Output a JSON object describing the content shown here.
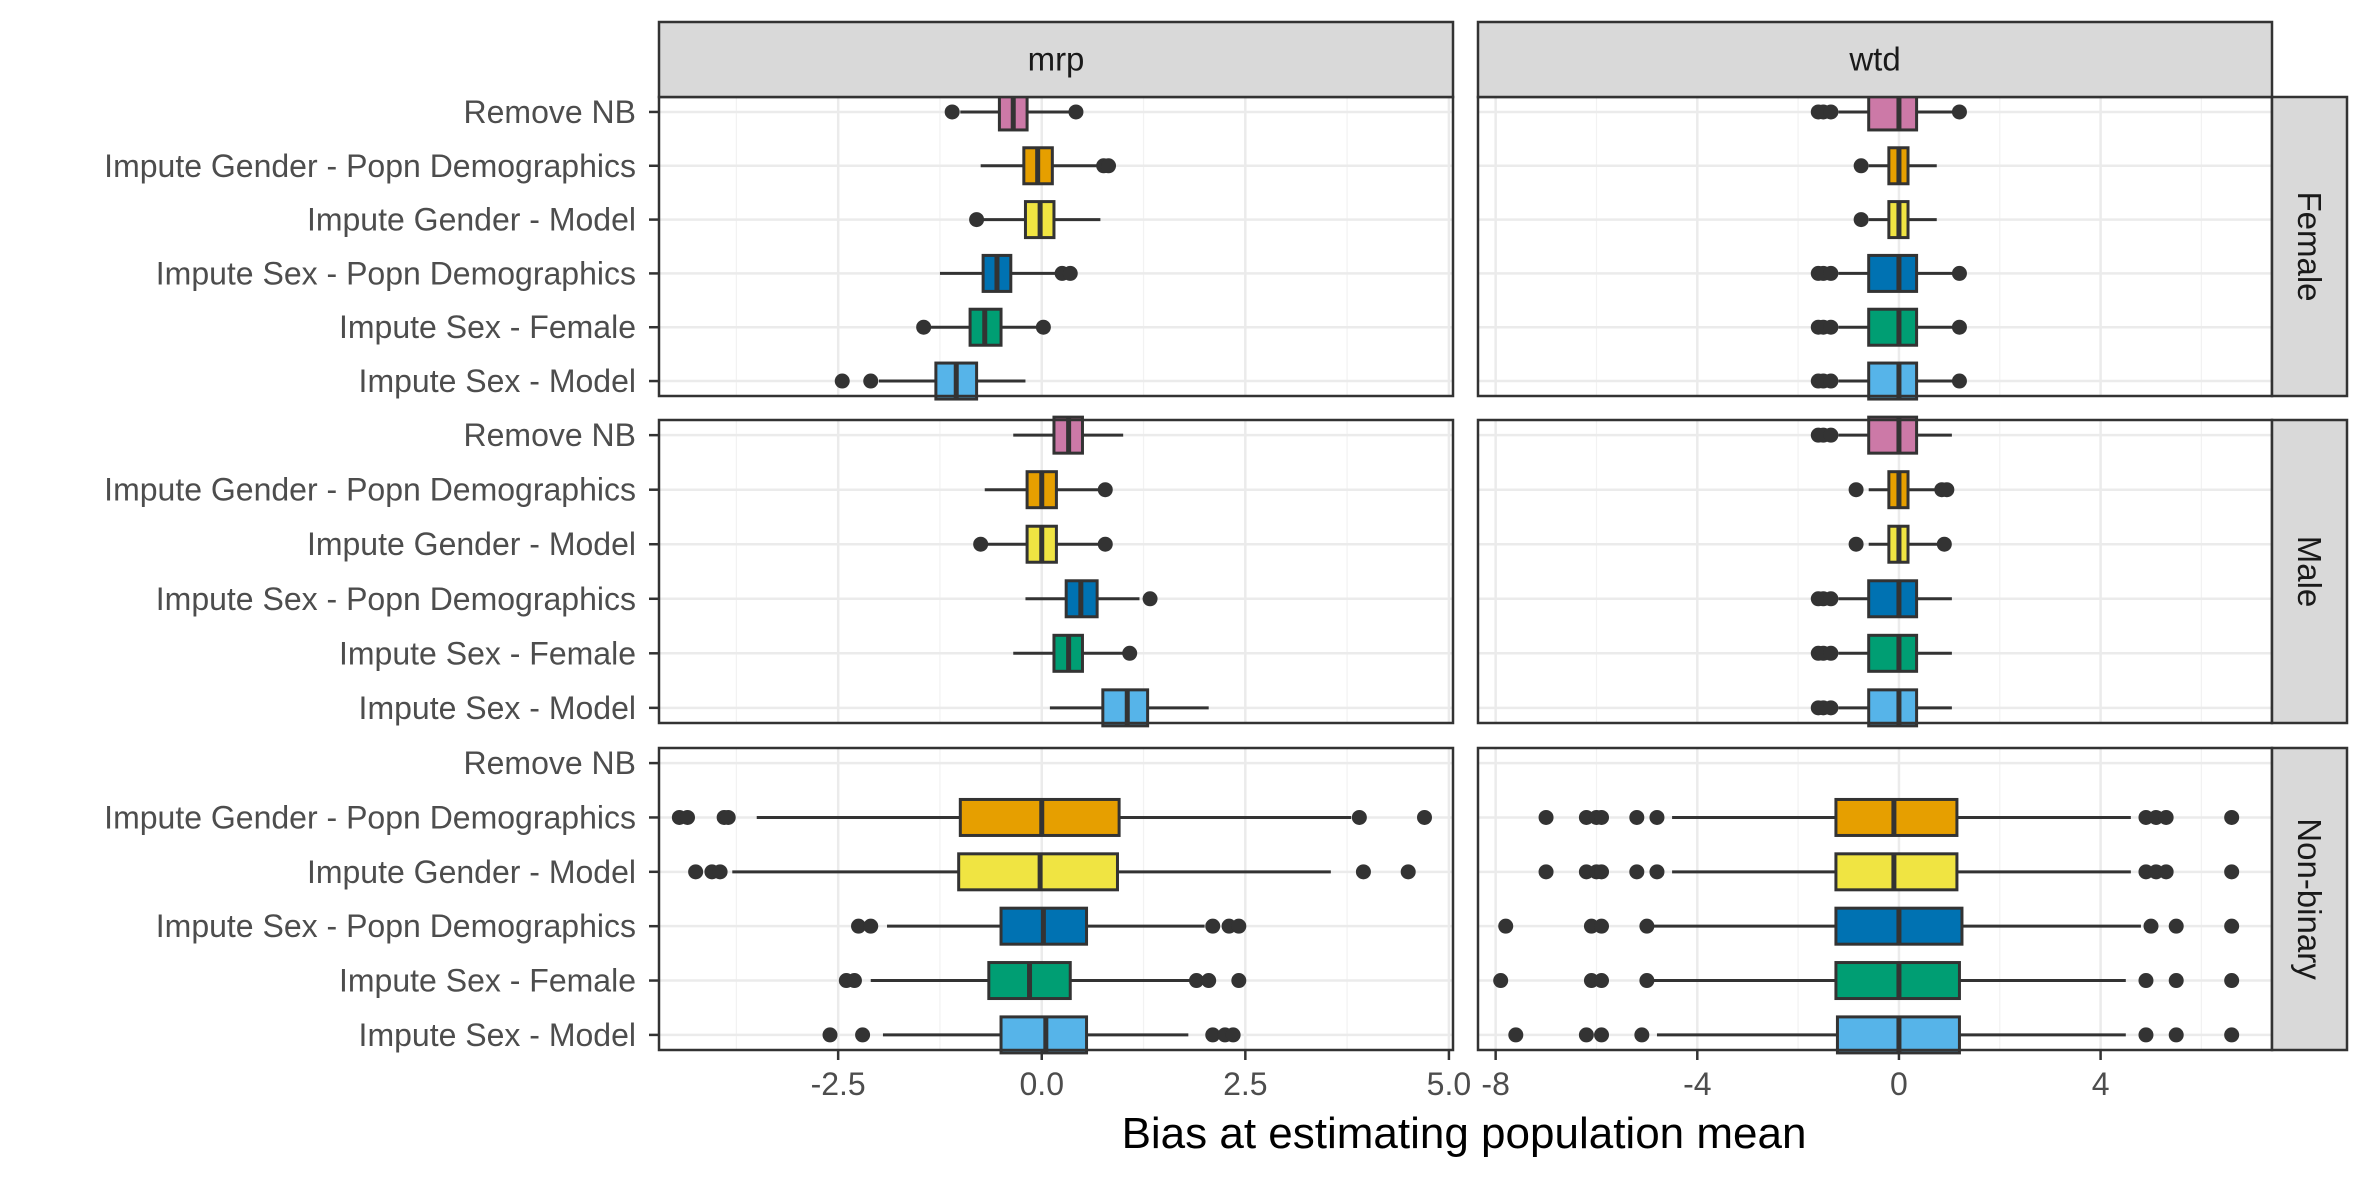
{
  "chart_data": {
    "type": "boxplot",
    "xlabel": "Bias at estimating population mean",
    "categories": [
      "Remove NB",
      "Impute Gender - Popn Demographics",
      "Impute Gender - Model",
      "Impute Sex - Popn Demographics",
      "Impute Sex - Female",
      "Impute Sex - Model"
    ],
    "colors": [
      "#CC79A7",
      "#E69F00",
      "#F0E442",
      "#0072B2",
      "#009E73",
      "#56B4E9"
    ],
    "columns": [
      {
        "name": "mrp",
        "xlim": [
          -4.7,
          5.05
        ],
        "ticks": [
          -2.5,
          0.0,
          2.5,
          5.0
        ],
        "tick_labels": [
          "-2.5",
          "0.0",
          "2.5",
          "5.0"
        ]
      },
      {
        "name": "wtd",
        "xlim": [
          -8.35,
          7.4
        ],
        "ticks": [
          -8,
          -4,
          0,
          4
        ],
        "tick_labels": [
          "-8",
          "-4",
          "0",
          "4"
        ]
      }
    ],
    "rows": [
      "Female",
      "Male",
      "Non-binary"
    ],
    "panels": {
      "mrp": {
        "Female": [
          {
            "q1": -0.52,
            "median": -0.35,
            "q3": -0.18,
            "whisker_low": -1.0,
            "whisker_high": 0.4,
            "outliers": [
              -1.1,
              0.42
            ]
          },
          {
            "q1": -0.22,
            "median": -0.05,
            "q3": 0.13,
            "whisker_low": -0.75,
            "whisker_high": 0.7,
            "outliers": [
              0.76,
              0.82
            ]
          },
          {
            "q1": -0.2,
            "median": -0.02,
            "q3": 0.15,
            "whisker_low": -0.75,
            "whisker_high": 0.72,
            "outliers": [
              -0.8
            ]
          },
          {
            "q1": -0.72,
            "median": -0.55,
            "q3": -0.38,
            "whisker_low": -1.25,
            "whisker_high": 0.2,
            "outliers": [
              0.25,
              0.35
            ]
          },
          {
            "q1": -0.88,
            "median": -0.7,
            "q3": -0.5,
            "whisker_low": -1.4,
            "whisker_high": 0.0,
            "outliers": [
              -1.45,
              0.02
            ]
          },
          {
            "q1": -1.3,
            "median": -1.05,
            "q3": -0.8,
            "whisker_low": -2.0,
            "whisker_high": -0.2,
            "outliers": [
              -2.45,
              -2.1
            ]
          }
        ],
        "Male": [
          {
            "q1": 0.15,
            "median": 0.33,
            "q3": 0.5,
            "whisker_low": -0.35,
            "whisker_high": 1.0,
            "outliers": []
          },
          {
            "q1": -0.18,
            "median": 0.0,
            "q3": 0.18,
            "whisker_low": -0.7,
            "whisker_high": 0.7,
            "outliers": [
              0.78
            ]
          },
          {
            "q1": -0.18,
            "median": 0.0,
            "q3": 0.18,
            "whisker_low": -0.7,
            "whisker_high": 0.7,
            "outliers": [
              -0.75,
              0.78
            ]
          },
          {
            "q1": 0.3,
            "median": 0.48,
            "q3": 0.68,
            "whisker_low": -0.2,
            "whisker_high": 1.2,
            "outliers": [
              1.33
            ]
          },
          {
            "q1": 0.15,
            "median": 0.33,
            "q3": 0.5,
            "whisker_low": -0.35,
            "whisker_high": 1.0,
            "outliers": [
              1.08
            ]
          },
          {
            "q1": 0.75,
            "median": 1.05,
            "q3": 1.3,
            "whisker_low": 0.1,
            "whisker_high": 2.05,
            "outliers": []
          }
        ],
        "Non-binary": [
          null,
          {
            "q1": -1.0,
            "median": 0.0,
            "q3": 0.95,
            "whisker_low": -3.5,
            "whisker_high": 3.8,
            "outliers": [
              -4.45,
              -4.35,
              -3.9,
              -3.85,
              3.9,
              4.7
            ]
          },
          {
            "q1": -1.02,
            "median": -0.02,
            "q3": 0.93,
            "whisker_low": -3.8,
            "whisker_high": 3.55,
            "outliers": [
              -4.25,
              -4.05,
              -3.95,
              3.95,
              4.5
            ]
          },
          {
            "q1": -0.5,
            "median": 0.02,
            "q3": 0.55,
            "whisker_low": -1.9,
            "whisker_high": 2.0,
            "outliers": [
              -2.25,
              -2.1,
              2.1,
              2.3,
              2.42
            ]
          },
          {
            "q1": -0.65,
            "median": -0.15,
            "q3": 0.35,
            "whisker_low": -2.1,
            "whisker_high": 1.85,
            "outliers": [
              -2.4,
              -2.3,
              1.9,
              2.05,
              2.42
            ]
          },
          {
            "q1": -0.5,
            "median": 0.05,
            "q3": 0.55,
            "whisker_low": -1.95,
            "whisker_high": 1.8,
            "outliers": [
              -2.6,
              -2.2,
              2.1,
              2.25,
              2.35
            ]
          }
        ]
      },
      "wtd": {
        "Female": [
          {
            "q1": -0.6,
            "median": 0.0,
            "q3": 0.35,
            "whisker_low": -1.2,
            "whisker_high": 1.2,
            "outliers": [
              -1.6,
              -1.5,
              -1.35,
              1.2
            ]
          },
          {
            "q1": -0.2,
            "median": 0.0,
            "q3": 0.18,
            "whisker_low": -0.6,
            "whisker_high": 0.75,
            "outliers": [
              -0.75
            ]
          },
          {
            "q1": -0.2,
            "median": 0.0,
            "q3": 0.18,
            "whisker_low": -0.6,
            "whisker_high": 0.75,
            "outliers": [
              -0.75
            ]
          },
          {
            "q1": -0.6,
            "median": 0.0,
            "q3": 0.35,
            "whisker_low": -1.2,
            "whisker_high": 1.2,
            "outliers": [
              -1.6,
              -1.5,
              -1.35,
              1.2
            ]
          },
          {
            "q1": -0.6,
            "median": 0.0,
            "q3": 0.35,
            "whisker_low": -1.2,
            "whisker_high": 1.2,
            "outliers": [
              -1.6,
              -1.5,
              -1.35,
              1.2
            ]
          },
          {
            "q1": -0.6,
            "median": 0.0,
            "q3": 0.35,
            "whisker_low": -1.2,
            "whisker_high": 1.2,
            "outliers": [
              -1.6,
              -1.5,
              -1.35,
              1.2
            ]
          }
        ],
        "Male": [
          {
            "q1": -0.6,
            "median": 0.0,
            "q3": 0.35,
            "whisker_low": -1.2,
            "whisker_high": 1.05,
            "outliers": [
              -1.6,
              -1.5,
              -1.35
            ]
          },
          {
            "q1": -0.2,
            "median": 0.0,
            "q3": 0.18,
            "whisker_low": -0.6,
            "whisker_high": 0.8,
            "outliers": [
              -0.85,
              0.85,
              0.95
            ]
          },
          {
            "q1": -0.2,
            "median": 0.0,
            "q3": 0.18,
            "whisker_low": -0.6,
            "whisker_high": 0.8,
            "outliers": [
              -0.85,
              0.9
            ]
          },
          {
            "q1": -0.6,
            "median": 0.0,
            "q3": 0.35,
            "whisker_low": -1.2,
            "whisker_high": 1.05,
            "outliers": [
              -1.6,
              -1.5,
              -1.35
            ]
          },
          {
            "q1": -0.6,
            "median": 0.0,
            "q3": 0.35,
            "whisker_low": -1.2,
            "whisker_high": 1.05,
            "outliers": [
              -1.6,
              -1.5,
              -1.35
            ]
          },
          {
            "q1": -0.6,
            "median": 0.0,
            "q3": 0.35,
            "whisker_low": -1.2,
            "whisker_high": 1.05,
            "outliers": [
              -1.6,
              -1.5,
              -1.35
            ]
          }
        ],
        "Non-binary": [
          null,
          {
            "q1": -1.25,
            "median": -0.1,
            "q3": 1.15,
            "whisker_low": -4.5,
            "whisker_high": 4.6,
            "outliers": [
              -7.0,
              -6.2,
              -6.0,
              -5.9,
              -5.2,
              -4.8,
              4.9,
              5.1,
              5.3,
              6.6
            ]
          },
          {
            "q1": -1.25,
            "median": -0.1,
            "q3": 1.15,
            "whisker_low": -4.5,
            "whisker_high": 4.6,
            "outliers": [
              -7.0,
              -6.2,
              -6.0,
              -5.9,
              -5.2,
              -4.8,
              4.9,
              5.1,
              5.3,
              6.6
            ]
          },
          {
            "q1": -1.25,
            "median": 0.0,
            "q3": 1.25,
            "whisker_low": -4.9,
            "whisker_high": 4.8,
            "outliers": [
              -7.8,
              -6.1,
              -5.9,
              -5.0,
              5.0,
              5.5,
              6.6
            ]
          },
          {
            "q1": -1.25,
            "median": 0.0,
            "q3": 1.2,
            "whisker_low": -4.9,
            "whisker_high": 4.5,
            "outliers": [
              -7.9,
              -6.1,
              -5.9,
              -5.0,
              4.9,
              5.5,
              6.6
            ]
          },
          {
            "q1": -1.22,
            "median": 0.0,
            "q3": 1.2,
            "whisker_low": -4.8,
            "whisker_high": 4.5,
            "outliers": [
              -7.6,
              -6.2,
              -5.9,
              -5.1,
              4.9,
              5.5,
              6.6
            ]
          }
        ]
      }
    }
  }
}
